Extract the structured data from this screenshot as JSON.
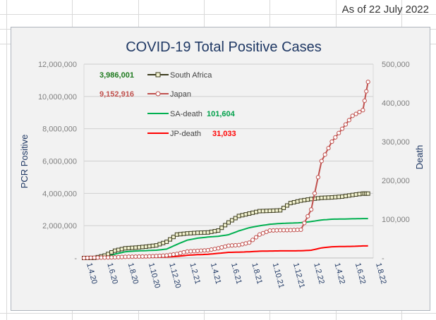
{
  "header": {
    "as_of": "As of 22 July 2022"
  },
  "chart_data": {
    "type": "line",
    "title": "COVID-19 Total Positive Cases",
    "ylabel": "PCR Positive",
    "y2label": "Death",
    "ylim": [
      0,
      12000000
    ],
    "y2lim": [
      0,
      500000
    ],
    "y_ticks": [
      "-",
      "2,000,000",
      "4,000,000",
      "6,000,000",
      "8,000,000",
      "10,000,000",
      "12,000,000"
    ],
    "y2_ticks": [
      "-",
      "100,000",
      "200,000",
      "300,000",
      "400,000",
      "500,000"
    ],
    "x_ticks": [
      "1.4.20",
      "1.6.20",
      "1.8.20",
      "1.10.20",
      "1.12.20",
      "1.2.21",
      "1.4.21",
      "1.6.21",
      "1.8.21",
      "1.10.21",
      "1.12.21",
      "1.2.22",
      "1.4.22",
      "1.6.22",
      "1.8.22"
    ],
    "x_tick_index": [
      0,
      2,
      4,
      6,
      8,
      10,
      12,
      14,
      16,
      18,
      20,
      22,
      24,
      26,
      28
    ],
    "grid": true,
    "legend_position": "top-left",
    "series": [
      {
        "name": "South Africa",
        "axis": "left",
        "color": "#3a3a1c",
        "marker": "square",
        "marker_fill": "#f2f2d0",
        "label_value": "3,986,001",
        "label_color": "#1e7a1e",
        "points": [
          [
            0,
            0
          ],
          [
            1,
            5000
          ],
          [
            2,
            150000
          ],
          [
            3,
            450000
          ],
          [
            4,
            600000
          ],
          [
            5,
            640000
          ],
          [
            6,
            700000
          ],
          [
            7,
            780000
          ],
          [
            8,
            1000000
          ],
          [
            9,
            1450000
          ],
          [
            10,
            1520000
          ],
          [
            11,
            1560000
          ],
          [
            12,
            1580000
          ],
          [
            13,
            1700000
          ],
          [
            14,
            2200000
          ],
          [
            15,
            2600000
          ],
          [
            16,
            2750000
          ],
          [
            17,
            2900000
          ],
          [
            18,
            2920000
          ],
          [
            19,
            2950000
          ],
          [
            20,
            3400000
          ],
          [
            21,
            3550000
          ],
          [
            22,
            3650000
          ],
          [
            23,
            3720000
          ],
          [
            24,
            3750000
          ],
          [
            25,
            3800000
          ],
          [
            26,
            3900000
          ],
          [
            27,
            3986001
          ],
          [
            27.5,
            3986001
          ]
        ]
      },
      {
        "name": "Japan",
        "axis": "left",
        "color": "#c0504d",
        "marker": "circle",
        "marker_fill": "#ffffff",
        "label_value": "9,152,916",
        "label_color": "#c0504d",
        "points": [
          [
            0,
            0
          ],
          [
            1,
            20000
          ],
          [
            2,
            25000
          ],
          [
            3,
            40000
          ],
          [
            4,
            70000
          ],
          [
            5,
            85000
          ],
          [
            6,
            95000
          ],
          [
            7,
            120000
          ],
          [
            8,
            160000
          ],
          [
            9,
            250000
          ],
          [
            10,
            400000
          ],
          [
            11,
            440000
          ],
          [
            12,
            480000
          ],
          [
            13,
            600000
          ],
          [
            14,
            760000
          ],
          [
            15,
            800000
          ],
          [
            16,
            950000
          ],
          [
            17,
            1450000
          ],
          [
            18,
            1700000
          ],
          [
            19,
            1720000
          ],
          [
            20,
            1725000
          ],
          [
            21,
            1750000
          ],
          [
            22,
            3000000
          ],
          [
            23,
            6000000
          ],
          [
            24,
            7200000
          ],
          [
            25,
            8000000
          ],
          [
            26,
            8800000
          ],
          [
            27,
            9152916
          ],
          [
            27.5,
            10900000
          ]
        ]
      },
      {
        "name": "SA-death",
        "axis": "right",
        "color": "#00b050",
        "marker": "none",
        "label_value": "101,604",
        "label_color": "#00a04a",
        "points": [
          [
            0,
            0
          ],
          [
            1,
            100
          ],
          [
            2,
            2500
          ],
          [
            3,
            10000
          ],
          [
            4,
            16000
          ],
          [
            5,
            18000
          ],
          [
            6,
            19000
          ],
          [
            7,
            20000
          ],
          [
            8,
            23000
          ],
          [
            9,
            35000
          ],
          [
            10,
            46000
          ],
          [
            11,
            51000
          ],
          [
            12,
            54000
          ],
          [
            13,
            56000
          ],
          [
            14,
            60000
          ],
          [
            15,
            70000
          ],
          [
            16,
            78000
          ],
          [
            17,
            83000
          ],
          [
            18,
            87000
          ],
          [
            19,
            89000
          ],
          [
            20,
            90000
          ],
          [
            21,
            91000
          ],
          [
            22,
            94000
          ],
          [
            23,
            98000
          ],
          [
            24,
            100000
          ],
          [
            25,
            100500
          ],
          [
            26,
            101000
          ],
          [
            27,
            101604
          ],
          [
            27.5,
            101604
          ]
        ]
      },
      {
        "name": "JP-death",
        "axis": "right",
        "color": "#ff0000",
        "marker": "none",
        "label_value": "31,033",
        "label_color": "#ff0000",
        "points": [
          [
            0,
            0
          ],
          [
            1,
            500
          ],
          [
            2,
            900
          ],
          [
            3,
            1000
          ],
          [
            4,
            1100
          ],
          [
            5,
            1300
          ],
          [
            6,
            1600
          ],
          [
            7,
            2000
          ],
          [
            8,
            2500
          ],
          [
            9,
            4000
          ],
          [
            10,
            7000
          ],
          [
            11,
            8500
          ],
          [
            12,
            9500
          ],
          [
            13,
            12000
          ],
          [
            14,
            14500
          ],
          [
            15,
            15000
          ],
          [
            16,
            16000
          ],
          [
            17,
            17500
          ],
          [
            18,
            18000
          ],
          [
            19,
            18300
          ],
          [
            20,
            18400
          ],
          [
            21,
            18500
          ],
          [
            22,
            20000
          ],
          [
            23,
            26000
          ],
          [
            24,
            29000
          ],
          [
            25,
            29500
          ],
          [
            26,
            30000
          ],
          [
            27,
            31033
          ],
          [
            27.5,
            31200
          ]
        ]
      }
    ]
  }
}
